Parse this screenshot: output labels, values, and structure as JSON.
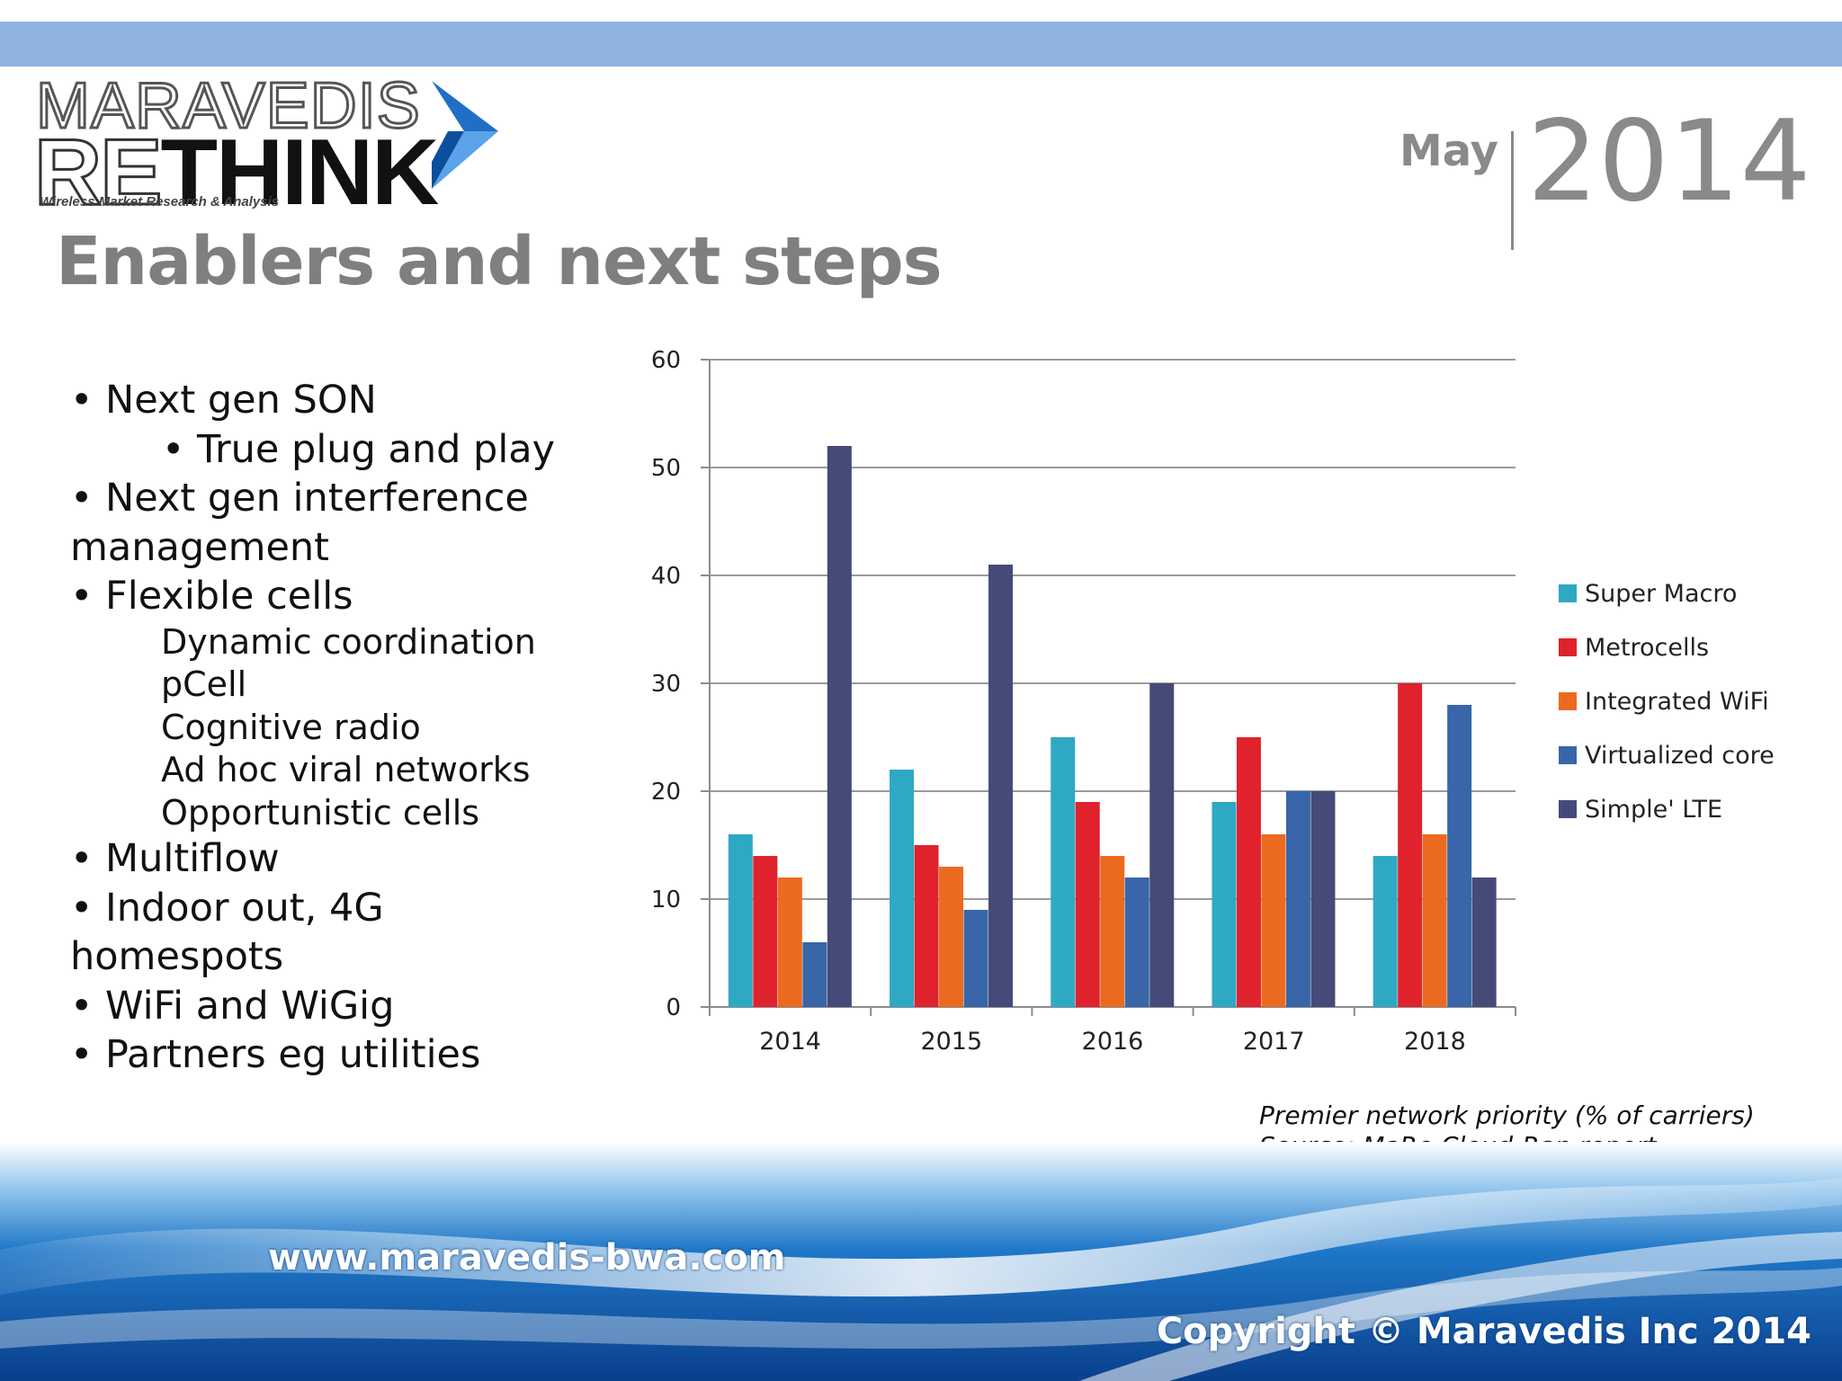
{
  "header": {
    "logo_top": "MARAVEDIS",
    "logo_re": "RE",
    "logo_think": "THINK",
    "logo_tagline": "Wireless Market Research & Analysis",
    "month": "May",
    "year": "2014"
  },
  "slide": {
    "title": "Enablers and next steps",
    "bullets": [
      "• Next gen SON",
      "• True plug and play",
      "• Next gen interference",
      "management",
      "• Flexible cells",
      "Dynamic coordination",
      "pCell",
      "Cognitive radio",
      "Ad hoc viral networks",
      "Opportunistic cells",
      "• Multiflow",
      "• Indoor out, 4G",
      "homespots",
      "• WiFi and WiGig",
      "• Partners eg utilities"
    ],
    "caption_line1": "Premier network priority (% of carriers)",
    "caption_line2": "Source: MaRe Cloud-Ran report"
  },
  "footer": {
    "website": "www.maravedis-bwa.com",
    "copyright": "Copyright © Maravedis Inc 2014"
  },
  "colors": {
    "topbar": "#8fb4e0",
    "title_gray": "#7f7f7f",
    "logo_arrow": "#1f6fc7"
  },
  "chart_data": {
    "type": "bar",
    "categories": [
      "2014",
      "2015",
      "2016",
      "2017",
      "2018"
    ],
    "series": [
      {
        "name": "Super Macro",
        "color": "#2fa8c4",
        "values": [
          16,
          22,
          25,
          19,
          14
        ]
      },
      {
        "name": "Metrocells",
        "color": "#e0222c",
        "values": [
          14,
          15,
          19,
          25,
          30
        ]
      },
      {
        "name": "Integrated WiFi",
        "color": "#ec6a20",
        "values": [
          12,
          13,
          14,
          16,
          16
        ]
      },
      {
        "name": "Virtualized core",
        "color": "#3866a8",
        "values": [
          6,
          9,
          12,
          20,
          28
        ]
      },
      {
        "name": "Simple' LTE",
        "color": "#454a78",
        "values": [
          52,
          41,
          30,
          20,
          12
        ]
      }
    ],
    "yticks": [
      "0",
      "10",
      "20",
      "30",
      "40",
      "50",
      "60"
    ],
    "ylim": [
      0,
      60
    ],
    "grid": true,
    "legend_position": "right"
  }
}
